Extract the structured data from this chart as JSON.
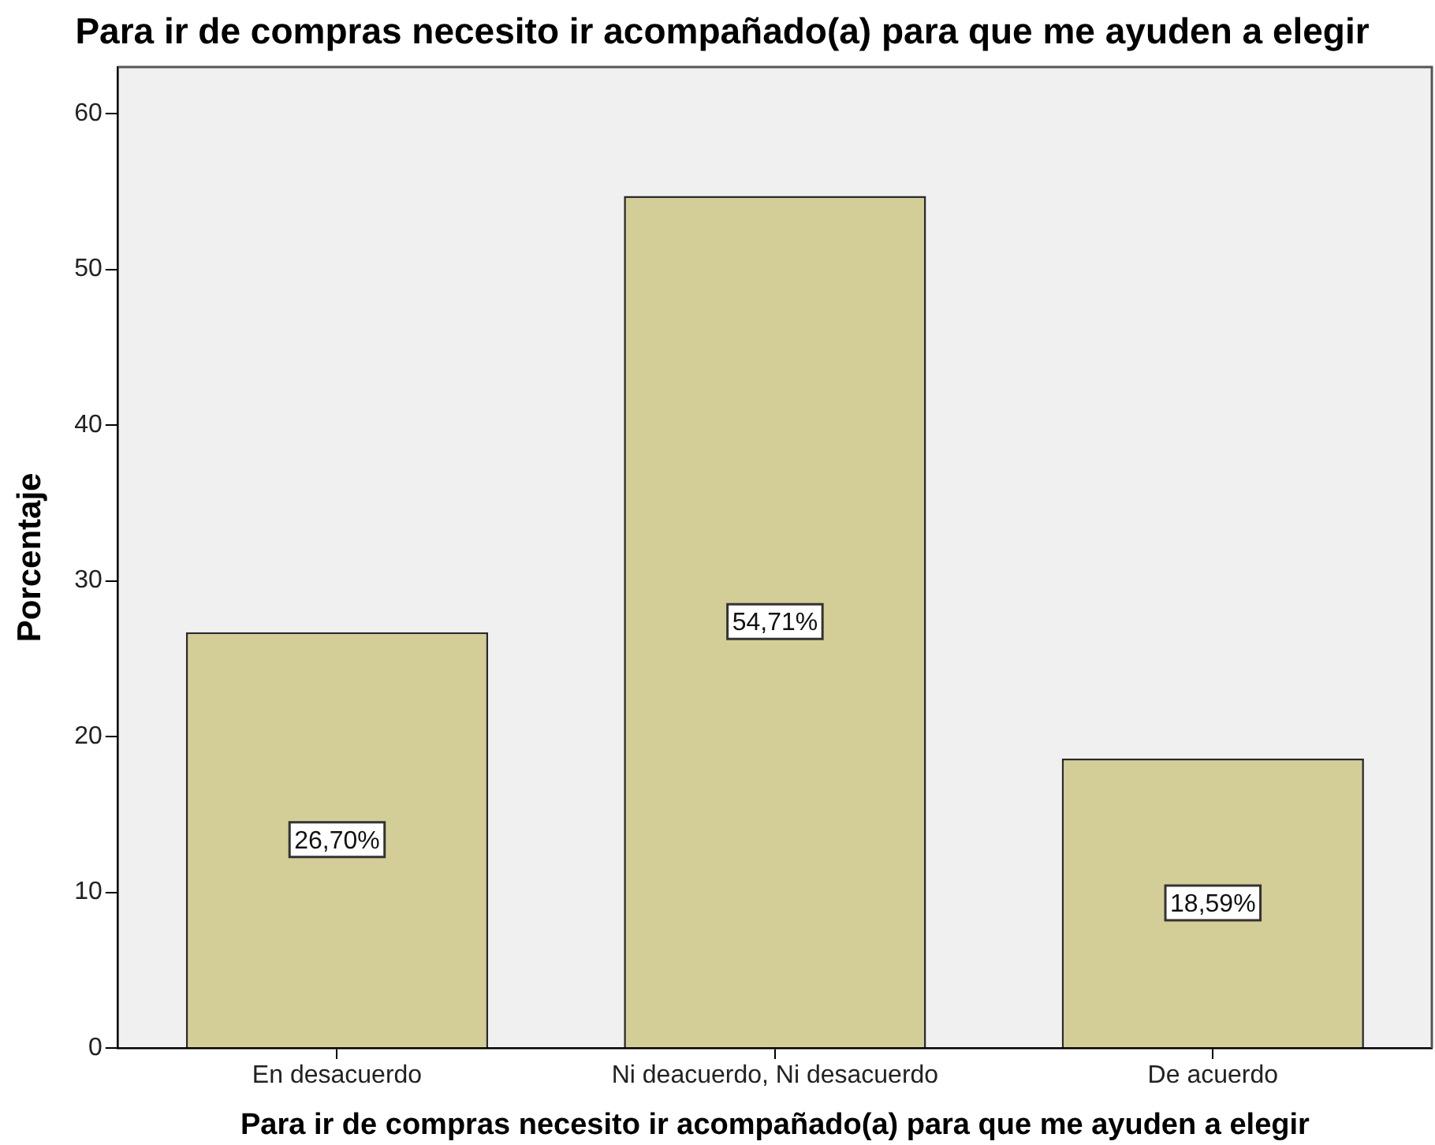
{
  "chart_data": {
    "type": "bar",
    "title": "Para ir de compras necesito ir acompañado(a) para que me ayuden a elegir",
    "xlabel": "Para ir de compras necesito ir acompañado(a) para que me ayuden a elegir",
    "ylabel": "Porcentaje",
    "categories": [
      "En desacuerdo",
      "Ni deacuerdo, Ni desacuerdo",
      "De acuerdo"
    ],
    "values": [
      26.7,
      54.71,
      18.59
    ],
    "value_labels": [
      "26,70%",
      "54,71%",
      "18,59%"
    ],
    "color": "#d3ce97",
    "ylim": [
      0,
      63
    ],
    "yticks": [
      0,
      10,
      20,
      30,
      40,
      50,
      60
    ],
    "grid": false
  }
}
